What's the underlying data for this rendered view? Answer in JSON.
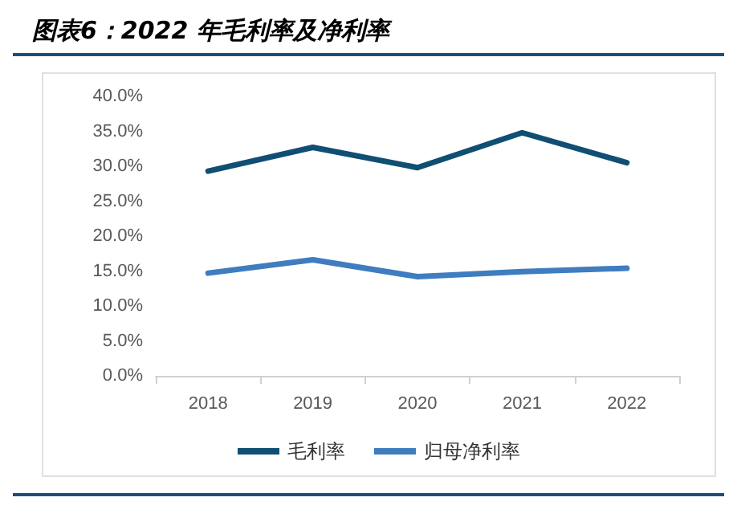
{
  "chart_data": {
    "type": "line",
    "title": "图表6：2022 年毛利率及净利率",
    "categories": [
      "2018",
      "2019",
      "2020",
      "2021",
      "2022"
    ],
    "series": [
      {
        "name": "毛利率",
        "color": "#114e74",
        "values": [
          29.3,
          32.7,
          29.8,
          34.8,
          30.5
        ]
      },
      {
        "name": "归母净利率",
        "color": "#3f7dbf",
        "values": [
          14.7,
          16.6,
          14.2,
          14.9,
          15.4
        ]
      }
    ],
    "ylim": [
      0,
      40
    ],
    "yticks": [
      {
        "value": 0,
        "label": "0.0%"
      },
      {
        "value": 5,
        "label": "5.0%"
      },
      {
        "value": 10,
        "label": "10.0%"
      },
      {
        "value": 15,
        "label": "15.0%"
      },
      {
        "value": 20,
        "label": "20.0%"
      },
      {
        "value": 25,
        "label": "25.0%"
      },
      {
        "value": 30,
        "label": "30.0%"
      },
      {
        "value": 35,
        "label": "35.0%"
      },
      {
        "value": 40,
        "label": "40.0%"
      }
    ],
    "grid": false,
    "legend": "bottom",
    "marker": "none",
    "line_style": "solid"
  }
}
